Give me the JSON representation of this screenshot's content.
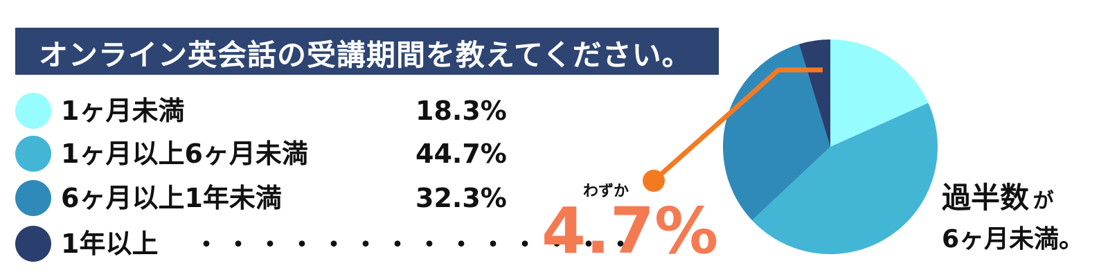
{
  "title": "オンライン英会話の受講期間を教えてください。",
  "chart_data": {
    "type": "pie",
    "title": "オンライン英会話の受講期間を教えてください。",
    "slices": [
      {
        "label": "1ヶ月未満",
        "value": 18.3,
        "display": "18.3%",
        "color": "#97fcfd"
      },
      {
        "label": "1ヶ月以上6ヶ月未満",
        "value": 44.7,
        "display": "44.7%",
        "color": "#43b6d6"
      },
      {
        "label": "6ヶ月以上1年未満",
        "value": 32.3,
        "display": "32.3%",
        "color": "#2f8aba"
      },
      {
        "label": "1年以上",
        "value": 4.7,
        "display": "4.7%",
        "color": "#2a3f6d"
      }
    ],
    "start_angle_deg": 0,
    "direction": "clockwise",
    "highlight": {
      "label": "1年以上",
      "note": "わずか",
      "color": "#f47a52"
    }
  },
  "leader_dots": "・・・・・・・・・・・・・・",
  "summary": {
    "line1_bold": "過半数",
    "line1_small": "が",
    "line2": "6ヶ月未満。"
  }
}
